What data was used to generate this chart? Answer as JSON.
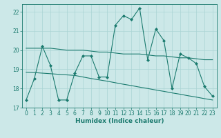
{
  "xlabel": "Humidex (Indice chaleur)",
  "ylabel": "",
  "background_color": "#cce8e8",
  "grid_color": "#aad4d4",
  "line_color": "#1a7a6e",
  "xlim": [
    -0.5,
    23.5
  ],
  "ylim": [
    17.0,
    22.4
  ],
  "yticks": [
    17,
    18,
    19,
    20,
    21,
    22
  ],
  "xticks": [
    0,
    1,
    2,
    3,
    4,
    5,
    6,
    7,
    8,
    9,
    10,
    11,
    12,
    13,
    14,
    15,
    16,
    17,
    18,
    19,
    20,
    21,
    22,
    23
  ],
  "line1_x": [
    0,
    1,
    2,
    3,
    4,
    5,
    6,
    7,
    8,
    9,
    10,
    11,
    12,
    13,
    14,
    15,
    16,
    17,
    18,
    19,
    20,
    21,
    22,
    23
  ],
  "line1_y": [
    17.4,
    18.5,
    20.2,
    19.2,
    17.4,
    17.4,
    18.8,
    19.7,
    19.7,
    18.6,
    18.6,
    21.3,
    21.8,
    21.6,
    22.2,
    19.5,
    21.1,
    20.5,
    18.0,
    19.8,
    19.6,
    19.3,
    18.1,
    17.6
  ],
  "line2_x": [
    0,
    1,
    2,
    3,
    4,
    5,
    6,
    7,
    8,
    9,
    10,
    11,
    12,
    13,
    14,
    15,
    16,
    17,
    18,
    19,
    20,
    21,
    22,
    23
  ],
  "line2_y": [
    20.1,
    20.1,
    20.1,
    20.1,
    20.05,
    20.0,
    20.0,
    20.0,
    19.95,
    19.9,
    19.9,
    19.85,
    19.8,
    19.8,
    19.8,
    19.75,
    19.7,
    19.7,
    19.65,
    19.6,
    19.6,
    19.55,
    19.5,
    19.5
  ],
  "line3_x": [
    0,
    1,
    2,
    3,
    4,
    5,
    6,
    7,
    8,
    9,
    10,
    11,
    12,
    13,
    14,
    15,
    16,
    17,
    18,
    19,
    20,
    21,
    22,
    23
  ],
  "line3_y": [
    18.85,
    18.83,
    18.8,
    18.77,
    18.74,
    18.71,
    18.68,
    18.6,
    18.52,
    18.45,
    18.38,
    18.3,
    18.22,
    18.15,
    18.07,
    18.0,
    17.92,
    17.85,
    17.77,
    17.7,
    17.62,
    17.55,
    17.47,
    17.4
  ]
}
